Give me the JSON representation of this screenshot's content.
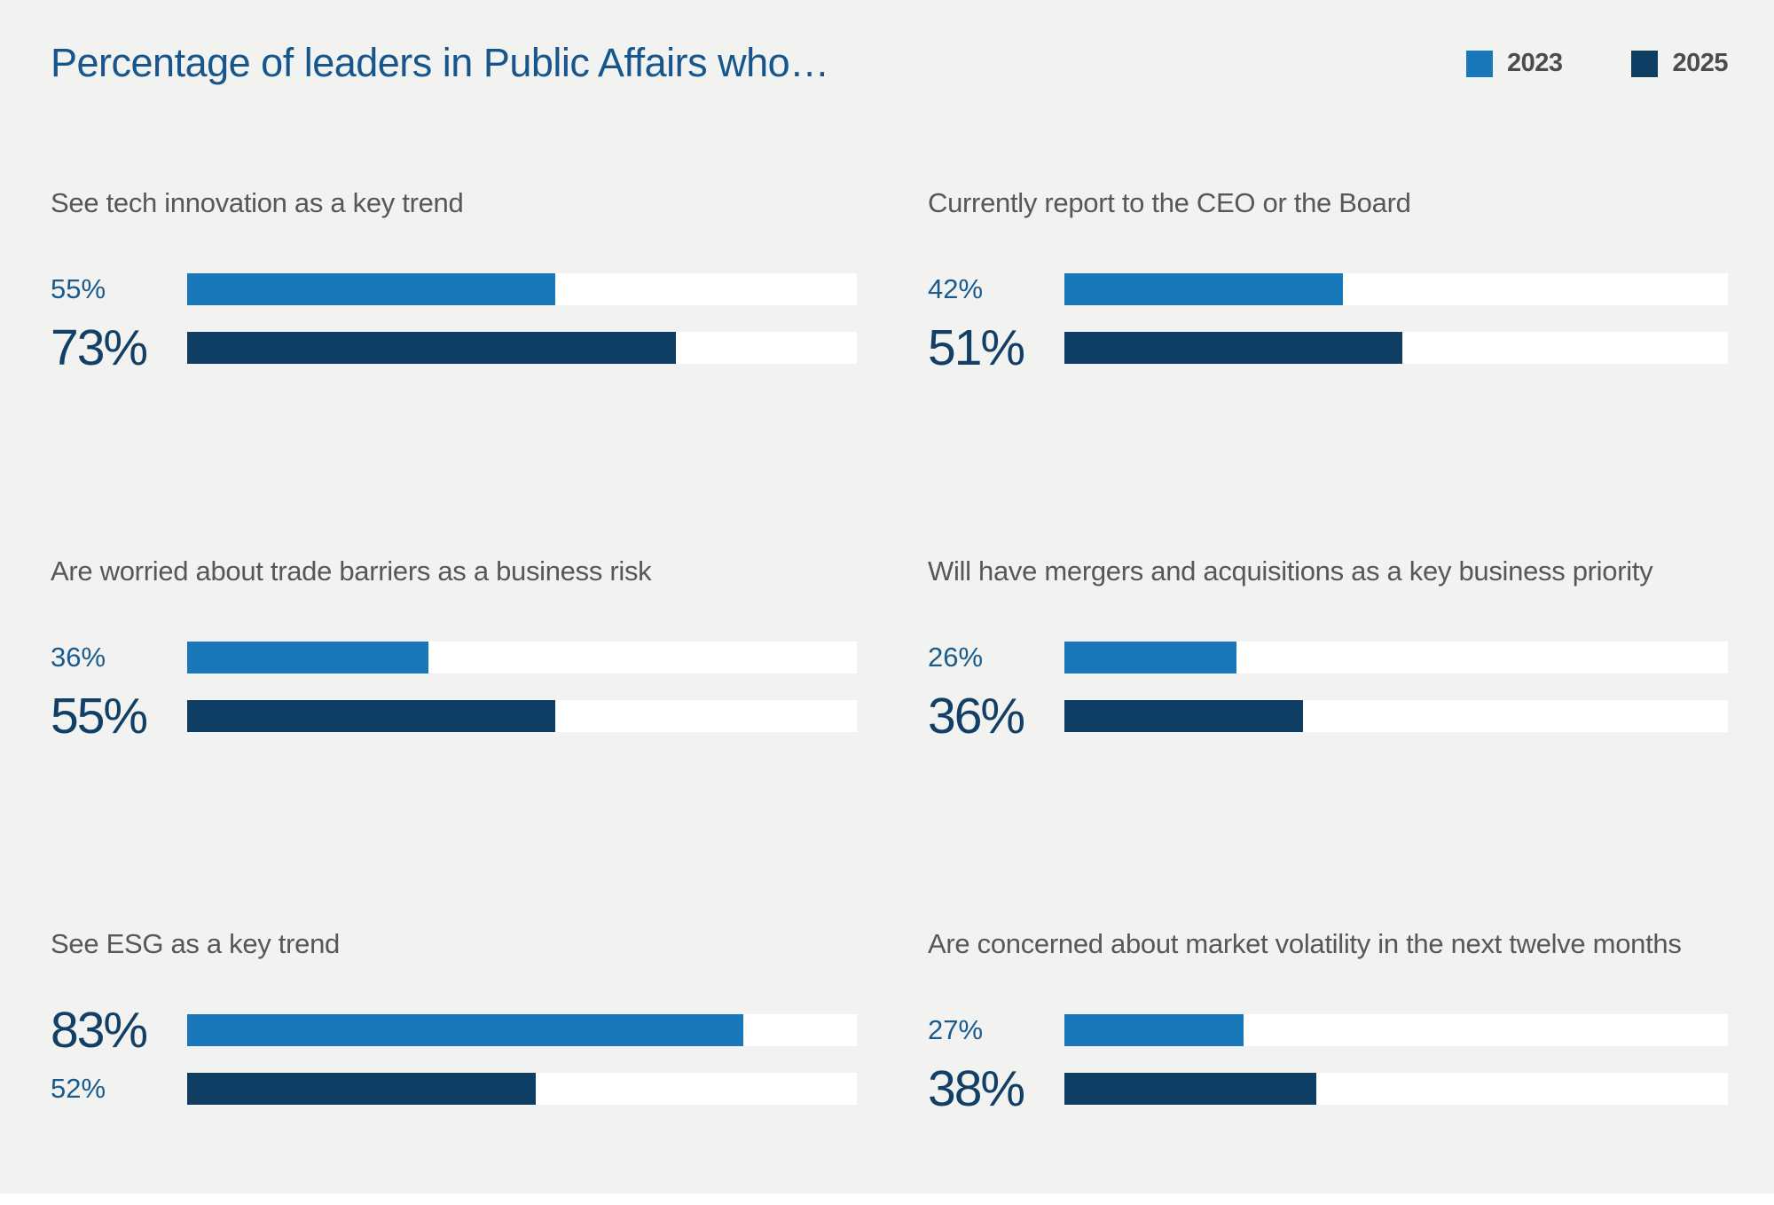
{
  "page": {
    "title": "Percentage of leaders in Public Affairs who…",
    "background_color": "#f2f2f1",
    "title_color": "#16568c"
  },
  "legend": {
    "items": [
      {
        "label": "2023",
        "color": "#1878b9"
      },
      {
        "label": "2025",
        "color": "#0e3e63"
      }
    ]
  },
  "chart_data": {
    "type": "bar",
    "title": "Percentage of leaders in Public Affairs who…",
    "orientation": "horizontal",
    "axis_range_percent": [
      0,
      100
    ],
    "grid": false,
    "legend_position": "top-right",
    "series_names": [
      "2023",
      "2025"
    ],
    "series_colors": {
      "2023": "#1878b9",
      "2025": "#0e3e63"
    },
    "panels": [
      {
        "title": "See tech innovation as a key trend",
        "value_2023": 55,
        "label_2023": "55%",
        "value_2025": 73,
        "label_2025": "73%",
        "emphasis": "2025"
      },
      {
        "title": "Currently report to the CEO or the Board",
        "value_2023": 42,
        "label_2023": "42%",
        "value_2025": 51,
        "label_2025": "51%",
        "emphasis": "2025"
      },
      {
        "title": "Are worried about trade barriers as a business risk",
        "value_2023": 36,
        "label_2023": "36%",
        "value_2025": 55,
        "label_2025": "55%",
        "emphasis": "2025"
      },
      {
        "title": "Will have mergers and acquisitions as a key business priority",
        "value_2023": 26,
        "label_2023": "26%",
        "value_2025": 36,
        "label_2025": "36%",
        "emphasis": "2025"
      },
      {
        "title": "See ESG as a key trend",
        "value_2023": 83,
        "label_2023": "83%",
        "value_2025": 52,
        "label_2025": "52%",
        "emphasis": "2023"
      },
      {
        "title": "Are concerned about market volatility in the next twelve months",
        "value_2023": 27,
        "label_2023": "27%",
        "value_2025": 38,
        "label_2025": "38%",
        "emphasis": "2025"
      }
    ]
  }
}
